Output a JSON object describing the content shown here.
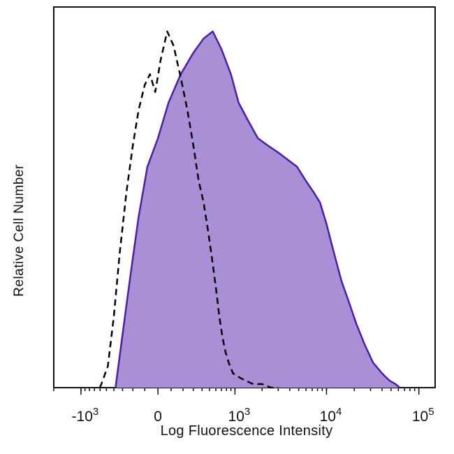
{
  "chart_data": {
    "type": "area",
    "title": "",
    "xlabel": "Log Fluorescence Intensity",
    "ylabel": "Relative Cell Number",
    "x_scale": "biexponential",
    "xlim": [
      -2000,
      150000
    ],
    "ylim": [
      0,
      100
    ],
    "x_ticks": [
      {
        "value": -1000,
        "base": "-10",
        "exp": "3"
      },
      {
        "value": 0,
        "base": "0",
        "exp": ""
      },
      {
        "value": 1000,
        "base": "10",
        "exp": "3"
      },
      {
        "value": 10000,
        "base": "10",
        "exp": "4"
      },
      {
        "value": 100000,
        "base": "10",
        "exp": "5"
      }
    ],
    "grid": false,
    "series": [
      {
        "style": "dashed",
        "color": "#000000",
        "fill": "none",
        "x": [
          -600,
          -480,
          -400,
          -330,
          -260,
          -200,
          -150,
          -100,
          -60,
          -20,
          20,
          70,
          120,
          180,
          240,
          300,
          360,
          420,
          480,
          540,
          600,
          660,
          720,
          780,
          850,
          950,
          1100,
          1300,
          1600,
          2000,
          2500,
          3000
        ],
        "y": [
          0,
          6,
          20,
          38,
          55,
          68,
          78,
          85,
          88,
          83,
          92,
          100,
          96,
          87,
          78,
          68,
          58,
          52,
          44,
          36,
          28,
          20,
          14,
          10,
          7,
          4,
          3,
          2,
          1,
          1,
          0,
          0
        ]
      },
      {
        "style": "solid",
        "color": "#4b1fa3",
        "fill": "#a98fd6",
        "x": [
          -380,
          -300,
          -220,
          -150,
          -80,
          0,
          80,
          180,
          300,
          420,
          550,
          700,
          900,
          1100,
          1400,
          1800,
          2300,
          3000,
          3800,
          4800,
          6000,
          7200,
          8500,
          10000,
          12000,
          14500,
          17500,
          21000,
          26000,
          32000,
          40000,
          48000,
          56000,
          62000
        ],
        "y": [
          0,
          15,
          32,
          48,
          62,
          70,
          80,
          88,
          94,
          98,
          100,
          95,
          88,
          80,
          75,
          70,
          68,
          66,
          64,
          62,
          58,
          55,
          52,
          46,
          38,
          30,
          24,
          18,
          12,
          7,
          4,
          2,
          1,
          0
        ]
      }
    ]
  }
}
